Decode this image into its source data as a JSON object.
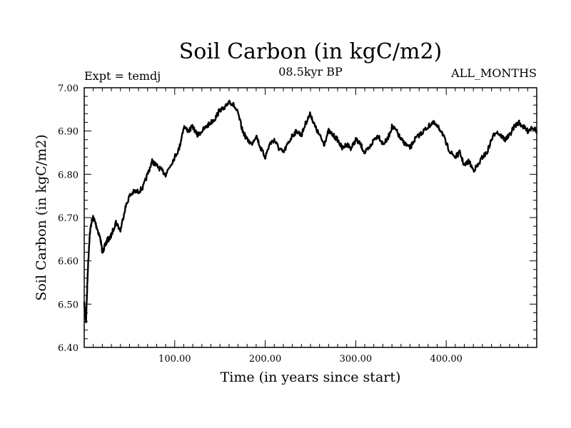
{
  "chart_data": {
    "type": "line",
    "title": "Soil Carbon (in kgC/m2)",
    "subtitle_left": "Expt = temdj",
    "subtitle_center": "08.5kyr BP",
    "subtitle_right": "ALL_MONTHS",
    "xlabel": "Time (in years since start)",
    "ylabel": "Soil Carbon (in kgC/m2)",
    "xlim": [
      0,
      500
    ],
    "ylim": [
      6.4,
      7.0
    ],
    "xticks": [
      100,
      200,
      300,
      400
    ],
    "xtick_labels": [
      "100.00",
      "200.00",
      "300.00",
      "400.00"
    ],
    "yticks": [
      6.4,
      6.5,
      6.6,
      6.7,
      6.8,
      6.9,
      7.0
    ],
    "ytick_labels": [
      "6.40",
      "6.50",
      "6.60",
      "6.70",
      "6.80",
      "6.90",
      "7.00"
    ],
    "color": "#000000",
    "series": [
      {
        "name": "Soil Carbon",
        "x": [
          0,
          2,
          4,
          6,
          8,
          10,
          12,
          15,
          18,
          20,
          22,
          24,
          26,
          28,
          30,
          35,
          40,
          45,
          50,
          55,
          60,
          65,
          70,
          75,
          80,
          85,
          90,
          95,
          100,
          105,
          110,
          115,
          120,
          125,
          130,
          135,
          140,
          145,
          150,
          155,
          160,
          165,
          170,
          175,
          180,
          185,
          190,
          195,
          200,
          205,
          210,
          215,
          220,
          225,
          230,
          235,
          240,
          245,
          250,
          255,
          260,
          265,
          270,
          275,
          280,
          285,
          290,
          295,
          300,
          305,
          310,
          315,
          320,
          325,
          330,
          335,
          340,
          345,
          350,
          355,
          360,
          365,
          370,
          375,
          380,
          385,
          390,
          395,
          400,
          405,
          410,
          415,
          420,
          425,
          430,
          435,
          440,
          445,
          450,
          455,
          460,
          465,
          470,
          475,
          480,
          485,
          490,
          495,
          500
        ],
        "y": [
          6.5,
          6.46,
          6.58,
          6.66,
          6.69,
          6.7,
          6.69,
          6.67,
          6.65,
          6.62,
          6.63,
          6.64,
          6.65,
          6.65,
          6.66,
          6.69,
          6.67,
          6.72,
          6.75,
          6.76,
          6.76,
          6.77,
          6.8,
          6.83,
          6.82,
          6.81,
          6.8,
          6.82,
          6.84,
          6.86,
          6.91,
          6.9,
          6.91,
          6.89,
          6.9,
          6.91,
          6.92,
          6.93,
          6.95,
          6.95,
          6.97,
          6.96,
          6.94,
          6.9,
          6.88,
          6.87,
          6.89,
          6.86,
          6.84,
          6.87,
          6.88,
          6.86,
          6.85,
          6.87,
          6.89,
          6.9,
          6.89,
          6.92,
          6.94,
          6.91,
          6.89,
          6.87,
          6.9,
          6.89,
          6.88,
          6.86,
          6.87,
          6.86,
          6.88,
          6.87,
          6.85,
          6.86,
          6.88,
          6.89,
          6.87,
          6.88,
          6.91,
          6.9,
          6.88,
          6.87,
          6.86,
          6.88,
          6.89,
          6.9,
          6.91,
          6.92,
          6.91,
          6.9,
          6.87,
          6.85,
          6.84,
          6.85,
          6.82,
          6.83,
          6.81,
          6.82,
          6.84,
          6.85,
          6.88,
          6.9,
          6.89,
          6.88,
          6.89,
          6.91,
          6.92,
          6.91,
          6.9,
          6.91,
          6.9
        ]
      }
    ]
  }
}
